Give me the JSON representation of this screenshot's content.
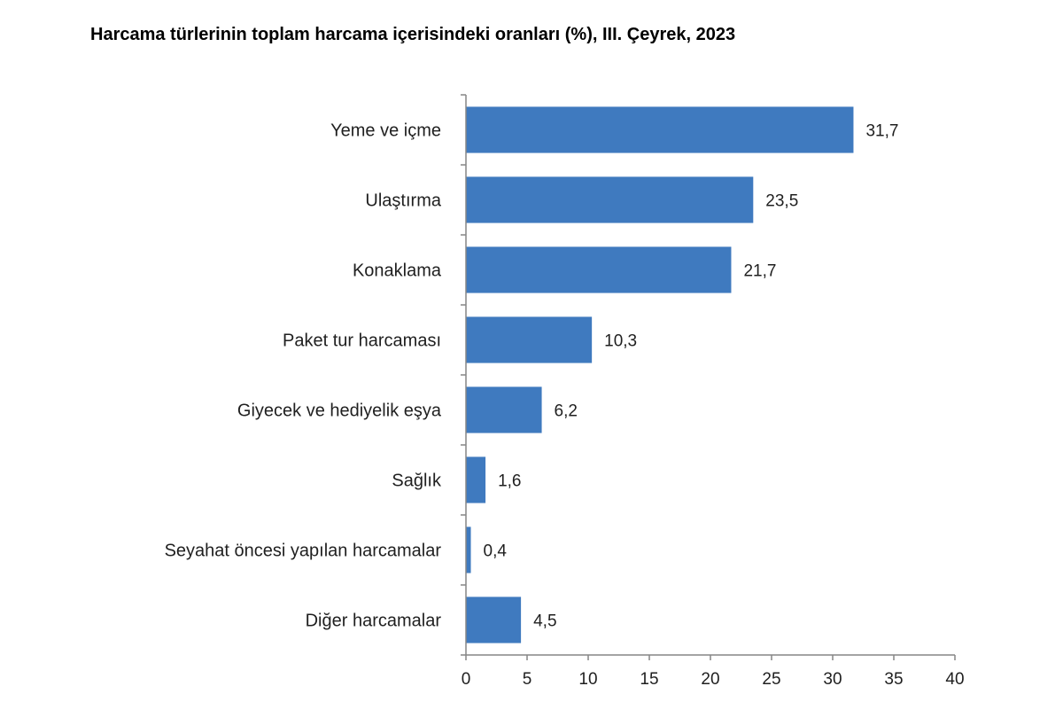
{
  "chart_data": {
    "type": "bar",
    "orientation": "horizontal",
    "title": "Harcama türlerinin toplam harcama içerisindeki oranları (%), III. Çeyrek, 2023",
    "categories": [
      "Yeme ve içme",
      "Ulaştırma",
      "Konaklama",
      "Paket tur harcaması",
      "Giyecek ve hediyelik eşya",
      "Sağlık",
      "Seyahat öncesi yapılan harcamalar",
      "Diğer harcamalar"
    ],
    "values": [
      31.7,
      23.5,
      21.7,
      10.3,
      6.2,
      1.6,
      0.4,
      4.5
    ],
    "value_labels": [
      "31,7",
      "23,5",
      "21,7",
      "10,3",
      "6,2",
      "1,6",
      "0,4",
      "4,5"
    ],
    "xlim": [
      0,
      40
    ],
    "xticks": [
      0,
      5,
      10,
      15,
      20,
      25,
      30,
      35,
      40
    ],
    "xlabel": "",
    "ylabel": "",
    "grid": false,
    "legend": "none",
    "bar_color": "#3f7abf",
    "axis_color": "#868686"
  }
}
